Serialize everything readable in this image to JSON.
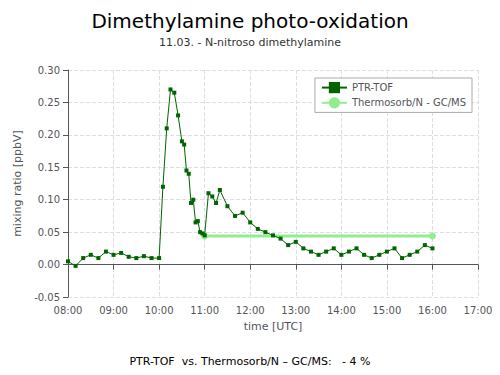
{
  "chart_data": {
    "type": "line",
    "title": "Dimethylamine photo-oxidation",
    "subtitle": "11.03. - N-nitroso dimethylamine",
    "xlabel": "time [UTC]",
    "ylabel": "mixing ratio [ppbV]",
    "annotations": [
      "PTR-TOF  vs. Thermosorb/N – GC/MS:   - 4 %"
    ],
    "xlim": [
      480,
      1020
    ],
    "xticks": [
      {
        "value": 480,
        "label": "08:00"
      },
      {
        "value": 540,
        "label": "09:00"
      },
      {
        "value": 600,
        "label": "10:00"
      },
      {
        "value": 660,
        "label": "11:00"
      },
      {
        "value": 720,
        "label": "12:00"
      },
      {
        "value": 780,
        "label": "13:00"
      },
      {
        "value": 840,
        "label": "14:00"
      },
      {
        "value": 900,
        "label": "15:00"
      },
      {
        "value": 960,
        "label": "16:00"
      },
      {
        "value": 1020,
        "label": "17:00"
      }
    ],
    "ylim": [
      -0.05,
      0.3
    ],
    "yticks": [
      -0.05,
      {
        "value": 0.0,
        "label": "0.00"
      },
      0.05,
      {
        "value": 0.1,
        "label": "0.10"
      },
      0.15,
      {
        "value": 0.2,
        "label": "0.20"
      },
      0.25,
      {
        "value": 0.3,
        "label": "0.30"
      }
    ],
    "grid": true,
    "legend": "upper right",
    "series": [
      {
        "name": "PTR-TOF",
        "color": "#006400",
        "marker": "square",
        "line_style": "solid",
        "x": [
          480,
          490,
          500,
          510,
          520,
          530,
          540,
          550,
          560,
          570,
          580,
          590,
          600,
          605,
          610,
          615,
          620,
          625,
          630,
          633,
          636,
          639,
          642,
          645,
          648,
          651,
          654,
          657,
          660,
          665,
          670,
          675,
          680,
          690,
          700,
          710,
          720,
          730,
          740,
          750,
          760,
          770,
          780,
          790,
          800,
          810,
          820,
          830,
          840,
          850,
          860,
          870,
          880,
          890,
          900,
          910,
          920,
          930,
          940,
          950,
          960
        ],
        "values": [
          0.005,
          -0.002,
          0.01,
          0.015,
          0.01,
          0.02,
          0.015,
          0.018,
          0.012,
          0.01,
          0.013,
          0.01,
          0.01,
          0.12,
          0.21,
          0.27,
          0.265,
          0.23,
          0.19,
          0.185,
          0.145,
          0.14,
          0.095,
          0.1,
          0.065,
          0.067,
          0.05,
          0.048,
          0.045,
          0.11,
          0.105,
          0.095,
          0.115,
          0.09,
          0.075,
          0.08,
          0.065,
          0.055,
          0.05,
          0.045,
          0.04,
          0.03,
          0.035,
          0.025,
          0.02,
          0.015,
          0.02,
          0.025,
          0.015,
          0.02,
          0.025,
          0.015,
          0.01,
          0.015,
          0.02,
          0.025,
          0.01,
          0.015,
          0.02,
          0.03,
          0.025
        ]
      },
      {
        "name": "Thermosorb/N - GC/MS",
        "color": "#90EE90",
        "marker": "circle",
        "line_style": "solid",
        "x": [
          660,
          960
        ],
        "values": [
          0.044,
          0.044
        ]
      }
    ]
  }
}
